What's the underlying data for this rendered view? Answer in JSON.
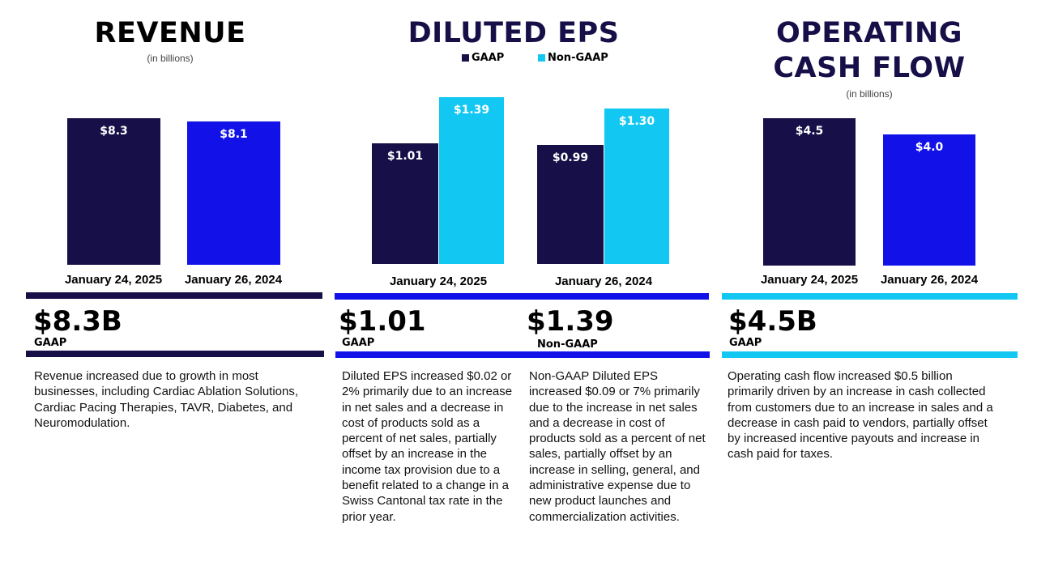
{
  "colors": {
    "navy": "#160f48",
    "blue": "#1212e8",
    "cyan": "#12c8f2"
  },
  "revenue": {
    "title": "REVENUE",
    "subtitle": "(in billions)",
    "headline": "$8.3B",
    "headline_label": "GAAP",
    "text": "Revenue increased due to growth in most businesses, including Cardiac Ablation Solutions, Cardiac Pacing Therapies, TAVR, Diabetes, and Neuromodulation."
  },
  "eps": {
    "title": "DILUTED EPS",
    "headline_gaap": "$1.01",
    "headline_gaap_label": "GAAP",
    "headline_nongaap": "$1.39",
    "headline_nongaap_label": "Non-GAAP",
    "text_gaap": "Diluted EPS increased $0.02 or 2% primarily due to an increase in net sales and a decrease in cost of products sold as a percent of net sales, partially offset by an increase in the income tax provision due to a benefit related to a change in a Swiss Cantonal tax rate in the prior year.",
    "text_nongaap": "Non-GAAP Diluted EPS increased $0.09 or 7% primarily due to the increase in net sales and a decrease in cost of products sold as a percent of net sales, partially offset by an increase in selling, general, and administrative expense due to new product launches and commercialization activities."
  },
  "ocf": {
    "title_line1": "OPERATING",
    "title_line2": "CASH FLOW",
    "subtitle": "(in billions)",
    "headline": "$4.5B",
    "headline_label": "GAAP",
    "text": "Operating cash flow increased $0.5 billion primarily driven by an increase in cash collected from customers due to an increase in sales and a decrease in cash paid to vendors, partially offset by increased incentive payouts and increase in cash paid for taxes."
  },
  "chart_data": [
    {
      "type": "bar",
      "title": "REVENUE",
      "subtitle": "(in billions)",
      "categories": [
        "January 24, 2025",
        "January 26, 2024"
      ],
      "values": [
        8.3,
        8.1
      ],
      "data_labels": [
        "$8.3",
        "$8.1"
      ],
      "bar_colors": [
        "#160f48",
        "#1212e8"
      ]
    },
    {
      "type": "bar",
      "title": "DILUTED EPS",
      "categories": [
        "January 24, 2025",
        "January 26, 2024"
      ],
      "legend": "top",
      "series": [
        {
          "name": "GAAP",
          "color": "#160f48",
          "values": [
            1.01,
            0.99
          ],
          "data_labels": [
            "$1.01",
            "$0.99"
          ]
        },
        {
          "name": "Non-GAAP",
          "color": "#12c8f2",
          "values": [
            1.39,
            1.3
          ],
          "data_labels": [
            "$1.39",
            "$1.30"
          ]
        }
      ]
    },
    {
      "type": "bar",
      "title": "OPERATING CASH FLOW",
      "subtitle": "(in billions)",
      "categories": [
        "January 24, 2025",
        "January 26, 2024"
      ],
      "values": [
        4.5,
        4.0
      ],
      "data_labels": [
        "$4.5",
        "$4.0"
      ],
      "bar_colors": [
        "#160f48",
        "#1212e8"
      ]
    }
  ]
}
